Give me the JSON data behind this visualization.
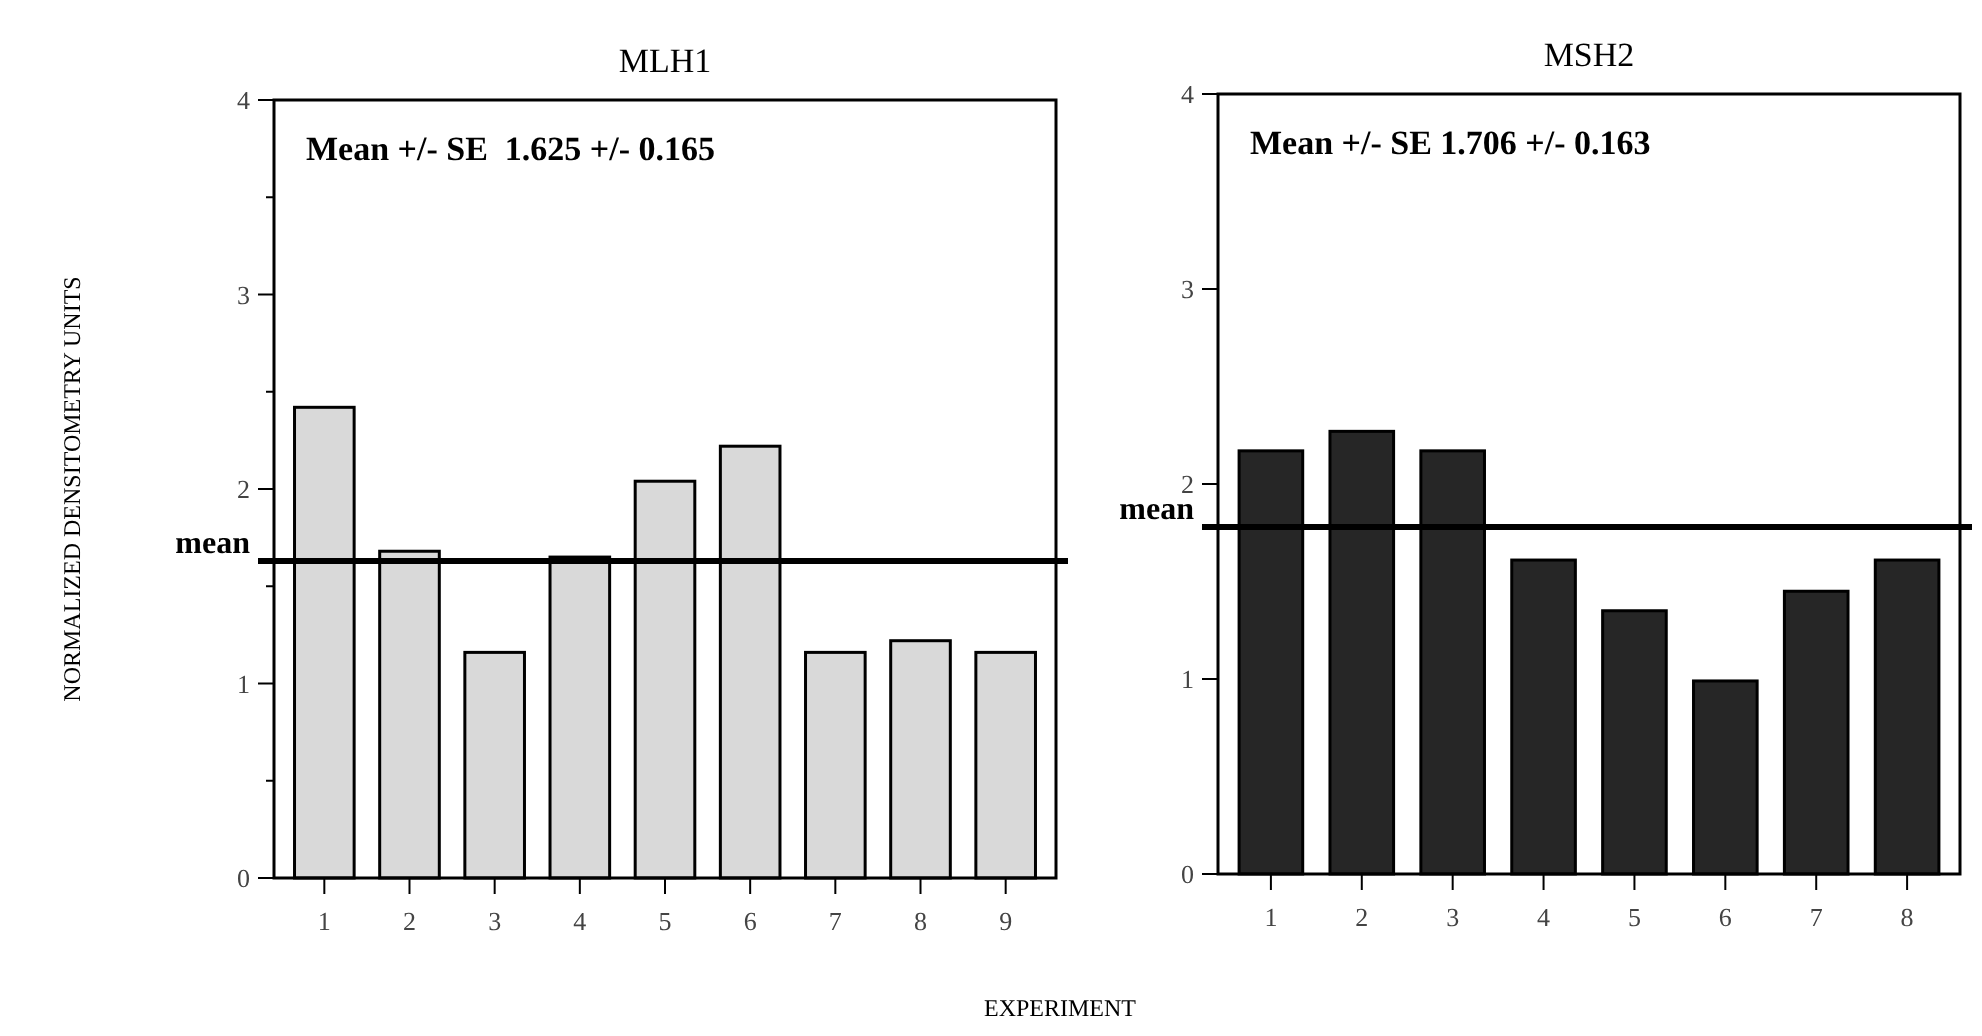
{
  "chart_data": [
    {
      "type": "bar",
      "title": "MLH1",
      "ylabel": "NORMALIZED DENSITOMETRY UNITS",
      "xlabel": "EXPERIMENT",
      "categories": [
        "1",
        "2",
        "3",
        "4",
        "5",
        "6",
        "7",
        "8",
        "9"
      ],
      "values": [
        2.42,
        1.68,
        1.16,
        1.65,
        2.04,
        2.22,
        1.16,
        1.22,
        1.16
      ],
      "color": "#d9d9d9",
      "ylim": [
        0,
        4
      ],
      "yticks": [
        0,
        {
          "value": 0.5,
          "label": null
        },
        1,
        {
          "value": 1.5,
          "label": null
        },
        2,
        {
          "value": 2.5,
          "label": null
        },
        3,
        {
          "value": 3.5,
          "label": null
        },
        4
      ],
      "ref_lines": [
        {
          "axis": "y",
          "value": 1.63,
          "label": "mean",
          "color": "#000000"
        }
      ],
      "annotations": [
        "Mean +/- SE  1.625 +/- 0.165"
      ]
    },
    {
      "type": "bar",
      "title": "MSH2",
      "categories": [
        "1",
        "2",
        "3",
        "4",
        "5",
        "6",
        "7",
        "8"
      ],
      "values": [
        2.17,
        2.27,
        2.17,
        1.61,
        1.35,
        0.99,
        1.45,
        1.61
      ],
      "color": "#262626",
      "ylim": [
        0,
        4
      ],
      "yticks": [
        0,
        1,
        2,
        3,
        4
      ],
      "ref_lines": [
        {
          "axis": "y",
          "value": 1.78,
          "label": "mean",
          "color": "#000000"
        }
      ],
      "annotations": [
        "Mean +/- SE 1.706 +/- 0.163"
      ]
    }
  ]
}
